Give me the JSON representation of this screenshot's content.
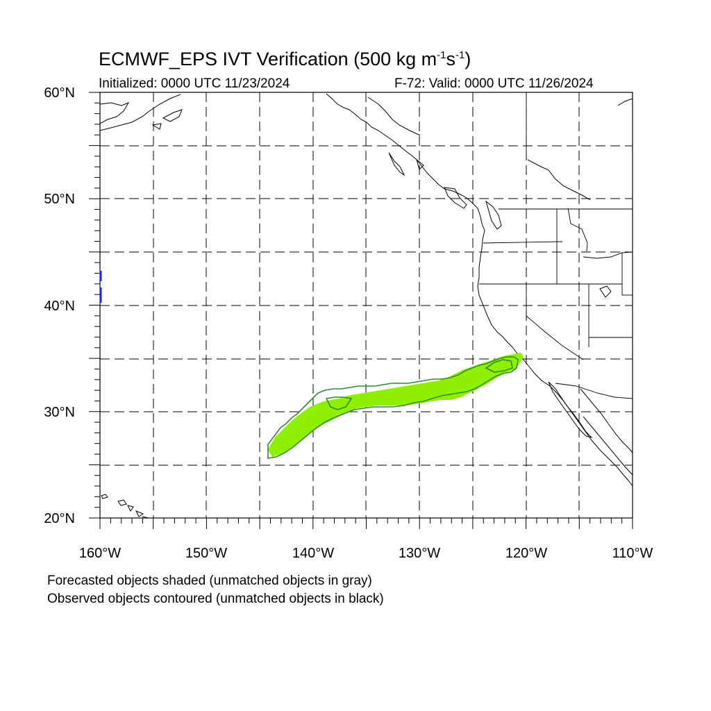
{
  "header": {
    "title_main": "ECMWF_EPS IVT Verification (500 kg m",
    "title_sup1": "-1",
    "title_mid": "s",
    "title_sup2": "-1",
    "title_end": ")",
    "initialized": "Initialized: 0000 UTC 11/23/2024",
    "valid": "F-72: Valid: 0000 UTC 11/26/2024"
  },
  "axes": {
    "lat_labels": [
      "60°N",
      "50°N",
      "40°N",
      "30°N",
      "20°N"
    ],
    "lon_labels": [
      "160°W",
      "150°W",
      "140°W",
      "130°W",
      "120°W",
      "110°W"
    ],
    "lat_range": [
      20,
      60
    ],
    "lon_range": [
      -160,
      -110
    ]
  },
  "legend": {
    "line1": "Forecasted objects shaded (unmatched objects in gray)",
    "line2": "Observed objects contoured (unmatched objects in black)"
  },
  "colors": {
    "forecast_fill": "#8ef000",
    "observed_contour": "#2e8b2e",
    "unmatched_obs_small": "#1f1fff",
    "coast": "#000000"
  }
}
